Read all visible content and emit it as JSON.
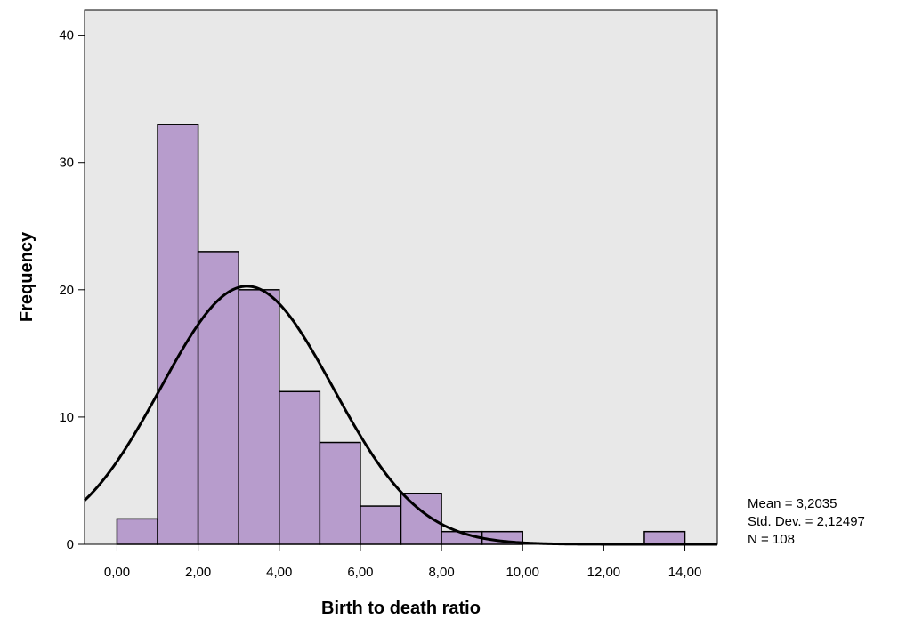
{
  "chart_data": {
    "type": "bar",
    "subtype": "histogram",
    "title": "",
    "xlabel": "Birth to death ratio",
    "ylabel": "Frequency",
    "bin_width": 1,
    "bins": [
      {
        "start": 0,
        "end": 1,
        "count": 2
      },
      {
        "start": 1,
        "end": 2,
        "count": 33
      },
      {
        "start": 2,
        "end": 3,
        "count": 23
      },
      {
        "start": 3,
        "end": 4,
        "count": 20
      },
      {
        "start": 4,
        "end": 5,
        "count": 12
      },
      {
        "start": 5,
        "end": 6,
        "count": 8
      },
      {
        "start": 6,
        "end": 7,
        "count": 3
      },
      {
        "start": 7,
        "end": 8,
        "count": 4
      },
      {
        "start": 8,
        "end": 9,
        "count": 1
      },
      {
        "start": 9,
        "end": 10,
        "count": 1
      },
      {
        "start": 13,
        "end": 14,
        "count": 1
      }
    ],
    "xlim": [
      -0.8,
      14.8
    ],
    "ylim": [
      0,
      42
    ],
    "x_ticks": [
      {
        "value": 0,
        "label": "0,00"
      },
      {
        "value": 2,
        "label": "2,00"
      },
      {
        "value": 4,
        "label": "4,00"
      },
      {
        "value": 6,
        "label": "6,00"
      },
      {
        "value": 8,
        "label": "8,00"
      },
      {
        "value": 10,
        "label": "10,00"
      },
      {
        "value": 12,
        "label": "12,00"
      },
      {
        "value": 14,
        "label": "14,00"
      }
    ],
    "y_ticks": [
      {
        "value": 0,
        "label": "0"
      },
      {
        "value": 10,
        "label": "10"
      },
      {
        "value": 20,
        "label": "20"
      },
      {
        "value": 30,
        "label": "30"
      },
      {
        "value": 40,
        "label": "40"
      }
    ],
    "normal_curve": {
      "mean": 3.2035,
      "std_dev": 2.12497,
      "n": 108
    },
    "stats": {
      "mean": "Mean = 3,2035",
      "std_dev": "Std. Dev. = 2,12497",
      "n": "N = 108"
    },
    "colors": {
      "plot_background": "#e8e8e8",
      "bar_fill": "#b79ccc",
      "bar_stroke": "#000000",
      "curve": "#000000"
    },
    "grid": false,
    "legend": "none"
  }
}
